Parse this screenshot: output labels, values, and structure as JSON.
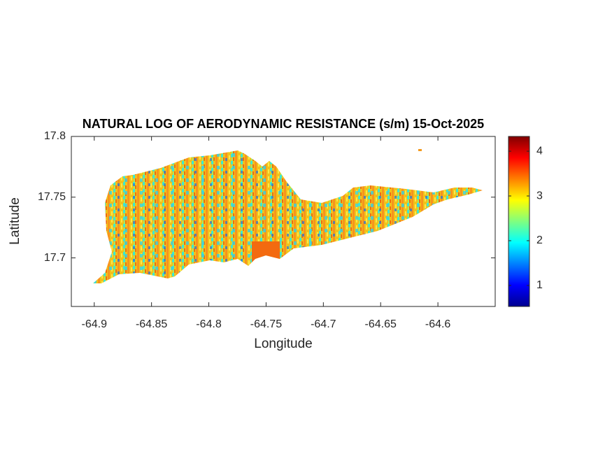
{
  "chart_data": {
    "type": "map",
    "title": "NATURAL LOG OF AERODYNAMIC RESISTANCE (s/m) 15-Oct-2025",
    "xlabel": "Longitude",
    "ylabel": "Latitude",
    "xlim": [
      -64.92,
      -64.55
    ],
    "xticks": [
      -64.9,
      -64.85,
      -64.8,
      -64.75,
      -64.7,
      -64.65,
      -64.6
    ],
    "ylim": [
      17.66,
      17.8
    ],
    "yticks": [
      17.7,
      17.75,
      17.8
    ],
    "colorbar": {
      "lim": [
        0.53,
        4.33
      ],
      "ticks": [
        1,
        2,
        3,
        4
      ],
      "colormap": "jet"
    }
  }
}
